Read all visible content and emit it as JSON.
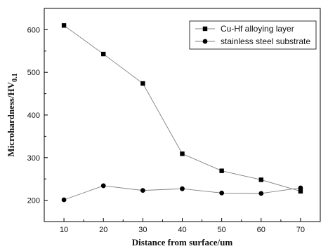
{
  "chart_data": {
    "type": "line",
    "xlabel": "Distance from surface/um",
    "ylabel": "Microhardness/HV",
    "ylabel_subscript": "0.1",
    "x": [
      10,
      20,
      30,
      40,
      50,
      60,
      70
    ],
    "xlim": [
      5,
      75
    ],
    "ylim": [
      150,
      650
    ],
    "xticks": [
      10,
      20,
      30,
      40,
      50,
      60,
      70
    ],
    "yticks": [
      200,
      300,
      400,
      500,
      600
    ],
    "grid": false,
    "legend_position": "top-right",
    "series": [
      {
        "name": "Cu-Hf alloying layer",
        "marker": "square",
        "values": [
          610,
          543,
          474,
          309,
          269,
          248,
          221
        ]
      },
      {
        "name": "stainless steel substrate",
        "marker": "circle",
        "values": [
          201,
          234,
          223,
          227,
          217,
          216,
          229
        ]
      }
    ],
    "colors": {
      "line": "#808080",
      "marker": "#000000",
      "axis": "#000000"
    }
  }
}
